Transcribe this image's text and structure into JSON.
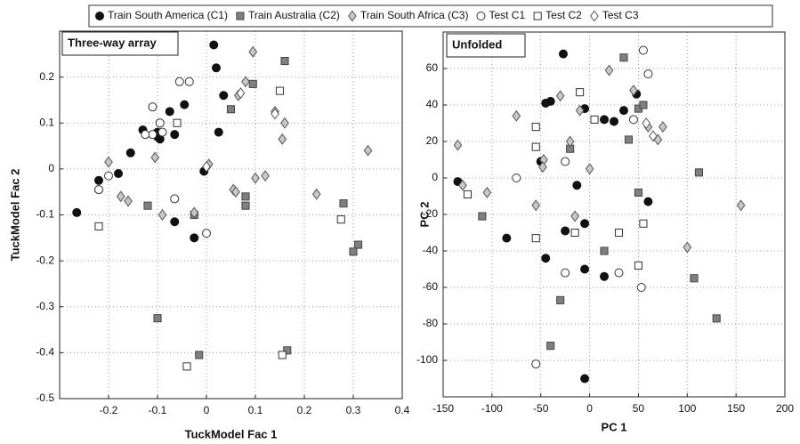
{
  "chart_data": [
    {
      "type": "scatter",
      "xlabel": "TuckModel Fac 1",
      "ylabel": "TuckModel Fac 2",
      "label": "Three-way array",
      "grid": true,
      "xlim": [
        -0.3,
        0.4
      ],
      "ylim": [
        -0.5,
        0.3
      ],
      "xticks": [
        -0.2,
        -0.1,
        0,
        0.1,
        0.2,
        0.3,
        0.4
      ],
      "yticks": [
        -0.5,
        -0.4,
        -0.3,
        -0.2,
        -0.1,
        0,
        0.1,
        0.2
      ],
      "series": [
        {
          "name": "Train South America (C1)",
          "color": "#111111",
          "edgecolor": "#111111",
          "marker": "circle",
          "x": [
            0.015,
            0.02,
            0.035,
            -0.045,
            -0.075,
            -0.13,
            -0.1,
            -0.1,
            -0.095,
            -0.065,
            0.025,
            -0.155,
            -0.18,
            -0.22,
            -0.22,
            -0.265,
            -0.005,
            -0.065,
            -0.025,
            -0.095
          ],
          "values": [
            0.27,
            0.22,
            0.16,
            0.14,
            0.125,
            0.085,
            0.08,
            0.07,
            0.065,
            0.075,
            0.08,
            0.035,
            -0.01,
            -0.025,
            -0.045,
            -0.095,
            -0.005,
            -0.115,
            -0.15,
            0.1
          ]
        },
        {
          "name": "Train Australia (C2)",
          "color": "#808080",
          "edgecolor": "#444444",
          "marker": "square",
          "x": [
            0.16,
            0.095,
            0.05,
            0.08,
            0.08,
            -0.12,
            -0.025,
            0.28,
            0.31,
            0.3,
            -0.1,
            -0.015,
            0.165
          ],
          "values": [
            0.235,
            0.185,
            0.13,
            -0.06,
            -0.08,
            -0.08,
            -0.1,
            -0.075,
            -0.165,
            -0.18,
            -0.325,
            -0.405,
            -0.395
          ]
        },
        {
          "name": "Train South Africa (C3)",
          "color": "#c8c8c8",
          "edgecolor": "#555555",
          "marker": "diamond",
          "x": [
            0.095,
            0.08,
            0.065,
            0.14,
            0.16,
            0.155,
            0.33,
            -0.105,
            -0.2,
            0.005,
            0.1,
            0.12,
            0.055,
            0.06,
            -0.025,
            0.225,
            -0.175,
            -0.16,
            -0.09
          ],
          "values": [
            0.255,
            0.19,
            0.16,
            0.125,
            0.1,
            0.065,
            0.04,
            0.025,
            0.015,
            0.01,
            -0.02,
            -0.015,
            -0.045,
            -0.05,
            -0.095,
            -0.055,
            -0.06,
            -0.07,
            -0.1
          ]
        },
        {
          "name": "Test C1",
          "color": "#ffffff",
          "edgecolor": "#333333",
          "marker": "circle",
          "x": [
            -0.11,
            -0.055,
            -0.035,
            -0.095,
            -0.11,
            -0.125,
            -0.09,
            -0.2,
            -0.22,
            -0.065,
            0
          ],
          "values": [
            0.135,
            0.19,
            0.19,
            0.1,
            0.075,
            0.075,
            0.08,
            -0.015,
            -0.045,
            -0.065,
            -0.14
          ]
        },
        {
          "name": "Test C2",
          "color": "#ffffff",
          "edgecolor": "#333333",
          "marker": "square",
          "x": [
            -0.06,
            0.15,
            -0.22,
            0.275,
            -0.04,
            0.155
          ],
          "values": [
            0.1,
            0.17,
            -0.125,
            -0.11,
            -0.43,
            -0.405
          ]
        },
        {
          "name": "Test C3",
          "color": "#ffffff",
          "edgecolor": "#555555",
          "marker": "diamond",
          "x": [
            0.07,
            0.14,
            0.0
          ],
          "values": [
            0.165,
            0.12,
            0.005
          ]
        }
      ]
    },
    {
      "type": "scatter",
      "xlabel": "PC 1",
      "ylabel": "PC 2",
      "label": "Unfolded",
      "grid": true,
      "xlim": [
        -150,
        200
      ],
      "ylim": [
        -120,
        80
      ],
      "xticks": [
        -150,
        -100,
        -50,
        0,
        50,
        100,
        150,
        200
      ],
      "yticks": [
        -100,
        -80,
        -60,
        -40,
        -20,
        0,
        20,
        40,
        60
      ],
      "series": [
        {
          "color": "#111111",
          "edgecolor": "#111111",
          "marker": "circle",
          "x": [
            -27,
            -45,
            -40,
            -5,
            15,
            25,
            35,
            48,
            -135,
            -50,
            -13,
            -85,
            -45,
            -25,
            -5,
            -5,
            15,
            -5,
            60
          ],
          "values": [
            68,
            41,
            42,
            38,
            32,
            31,
            37,
            46,
            -2,
            9,
            -4,
            -33,
            -44,
            -29,
            -25,
            -50,
            -54,
            -110,
            -13
          ]
        },
        {
          "color": "#808080",
          "edgecolor": "#444444",
          "marker": "square",
          "x": [
            35,
            50,
            40,
            -20,
            112,
            -110,
            50,
            15,
            -30,
            -40,
            107,
            130,
            55
          ],
          "values": [
            66,
            38,
            21,
            16,
            3,
            -21,
            -8,
            -40,
            -67,
            -92,
            -55,
            -77,
            40
          ]
        },
        {
          "color": "#c8c8c8",
          "edgecolor": "#555555",
          "marker": "diamond",
          "x": [
            -135,
            -130,
            -105,
            -75,
            -47,
            -48,
            -30,
            -20,
            -10,
            20,
            45,
            60,
            75,
            70,
            -15,
            -55,
            155,
            100,
            0
          ],
          "values": [
            18,
            -4,
            -8,
            34,
            10,
            6,
            45,
            20,
            37,
            59,
            48,
            28,
            28,
            21,
            -21,
            -15,
            -15,
            -38,
            5
          ]
        },
        {
          "color": "#ffffff",
          "edgecolor": "#333333",
          "marker": "circle",
          "x": [
            55,
            60,
            -75,
            -25,
            -25,
            30,
            53,
            -55,
            45
          ],
          "values": [
            70,
            57,
            0,
            9,
            -52,
            -52,
            -60,
            -102,
            32
          ]
        },
        {
          "color": "#ffffff",
          "edgecolor": "#333333",
          "marker": "square",
          "x": [
            -125,
            -55,
            -55,
            -55,
            -10,
            5,
            -15,
            30,
            50,
            55
          ],
          "values": [
            -9,
            17,
            -33,
            28,
            47,
            32,
            -30,
            -30,
            -48,
            -25
          ]
        },
        {
          "color": "#ffffff",
          "edgecolor": "#555555",
          "marker": "diamond",
          "x": [
            65,
            58
          ],
          "values": [
            23,
            30
          ]
        }
      ]
    }
  ]
}
